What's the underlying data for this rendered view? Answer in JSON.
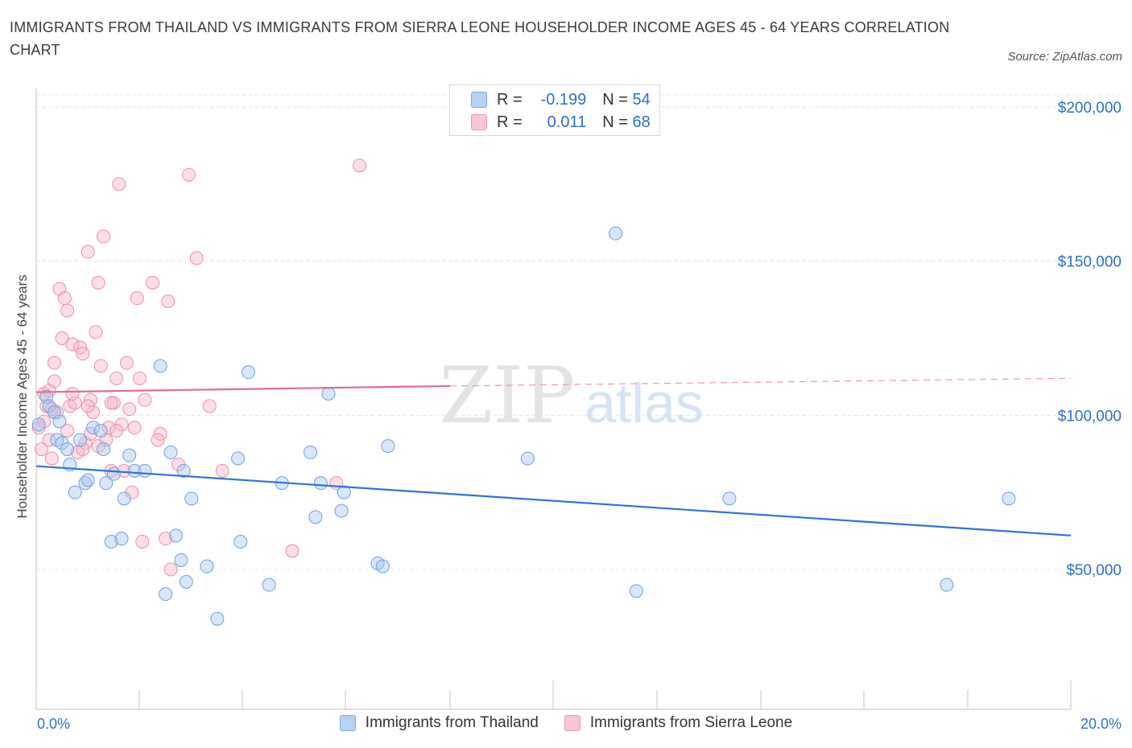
{
  "header": {
    "title": "IMMIGRANTS FROM THAILAND VS IMMIGRANTS FROM SIERRA LEONE HOUSEHOLDER INCOME AGES 45 - 64 YEARS CORRELATION CHART",
    "source": "Source: ZipAtlas.com"
  },
  "watermark": {
    "zip": "ZIP",
    "atlas": "atlas"
  },
  "legend": {
    "rows": [
      {
        "r_label": "R =",
        "r_value": "-0.199",
        "n_label": "N =",
        "n_value": "54"
      },
      {
        "r_label": "R =",
        "r_value": "0.011",
        "n_label": "N =",
        "n_value": "68"
      }
    ]
  },
  "colors": {
    "thailand_fill": "#a9c8f0",
    "thailand_stroke": "#6f9fe0",
    "thailand_line": "#2f73d6",
    "sierra_fill": "#f7b9cc",
    "sierra_stroke": "#ec8fab",
    "sierra_line": "#e46b8e",
    "axis_label": "#2f6fc9"
  },
  "chart_data": {
    "type": "scatter",
    "title": "IMMIGRANTS FROM THAILAND VS IMMIGRANTS FROM SIERRA LEONE HOUSEHOLDER INCOME AGES 45 - 64 YEARS CORRELATION CHART",
    "xlabel": "",
    "ylabel": "Householder Income Ages 45 - 64 years",
    "xlim": [
      0,
      20
    ],
    "ylim": [
      15000,
      215000
    ],
    "x_tick_labels": [
      "0.0%",
      "20.0%"
    ],
    "y_tick_values": [
      50000,
      100000,
      150000,
      200000
    ],
    "y_tick_labels": [
      "$50,000",
      "$100,000",
      "$150,000",
      "$200,000"
    ],
    "grid": true,
    "legend_position": "top-center",
    "series": [
      {
        "name": "Immigrants from Thailand",
        "R": -0.199,
        "N": 54,
        "trend": {
          "x": [
            0,
            20
          ],
          "y": [
            83500,
            61000
          ]
        },
        "points": [
          [
            0.05,
            97000
          ],
          [
            0.2,
            106000
          ],
          [
            0.25,
            103000
          ],
          [
            0.35,
            101000
          ],
          [
            0.4,
            92000
          ],
          [
            0.5,
            91000
          ],
          [
            0.6,
            89000
          ],
          [
            0.65,
            84000
          ],
          [
            0.75,
            75000
          ],
          [
            0.85,
            92000
          ],
          [
            0.95,
            78000
          ],
          [
            1.1,
            96000
          ],
          [
            1.0,
            79000
          ],
          [
            1.3,
            89000
          ],
          [
            1.35,
            78000
          ],
          [
            1.5,
            81000
          ],
          [
            1.45,
            59000
          ],
          [
            1.65,
            60000
          ],
          [
            1.7,
            73000
          ],
          [
            1.8,
            87000
          ],
          [
            1.9,
            82000
          ],
          [
            2.1,
            82000
          ],
          [
            2.4,
            116000
          ],
          [
            2.5,
            42000
          ],
          [
            2.6,
            88000
          ],
          [
            2.7,
            61000
          ],
          [
            2.8,
            53000
          ],
          [
            2.9,
            46000
          ],
          [
            2.85,
            82000
          ],
          [
            3.0,
            73000
          ],
          [
            3.3,
            51000
          ],
          [
            3.5,
            34000
          ],
          [
            3.9,
            86000
          ],
          [
            3.95,
            59000
          ],
          [
            4.1,
            114000
          ],
          [
            4.5,
            45000
          ],
          [
            4.75,
            78000
          ],
          [
            5.3,
            88000
          ],
          [
            5.4,
            67000
          ],
          [
            5.5,
            78000
          ],
          [
            5.65,
            107000
          ],
          [
            5.9,
            69000
          ],
          [
            5.95,
            75000
          ],
          [
            6.6,
            52000
          ],
          [
            6.7,
            51000
          ],
          [
            6.8,
            90000
          ],
          [
            9.5,
            86000
          ],
          [
            11.2,
            159000
          ],
          [
            11.6,
            43000
          ],
          [
            13.4,
            73000
          ],
          [
            17.6,
            45000
          ],
          [
            18.8,
            73000
          ],
          [
            0.45,
            98000
          ],
          [
            1.25,
            95000
          ]
        ]
      },
      {
        "name": "Immigrants from Sierra Leone",
        "R": 0.011,
        "N": 68,
        "trend": {
          "x": [
            0,
            8
          ],
          "y": [
            107500,
            109500
          ]
        },
        "trend_dashed": {
          "x": [
            8,
            20
          ],
          "y": [
            109500,
            112000
          ]
        },
        "points": [
          [
            0.05,
            96000
          ],
          [
            0.1,
            89000
          ],
          [
            0.15,
            107000
          ],
          [
            0.2,
            103000
          ],
          [
            0.25,
            92000
          ],
          [
            0.3,
            86000
          ],
          [
            0.35,
            111000
          ],
          [
            0.35,
            117000
          ],
          [
            0.4,
            101000
          ],
          [
            0.45,
            141000
          ],
          [
            0.5,
            125000
          ],
          [
            0.55,
            138000
          ],
          [
            0.6,
            134000
          ],
          [
            0.65,
            103000
          ],
          [
            0.7,
            123000
          ],
          [
            0.75,
            104000
          ],
          [
            0.8,
            88000
          ],
          [
            0.85,
            122000
          ],
          [
            0.9,
            120000
          ],
          [
            0.95,
            91000
          ],
          [
            1.0,
            153000
          ],
          [
            1.05,
            105000
          ],
          [
            1.1,
            101000
          ],
          [
            1.15,
            127000
          ],
          [
            1.2,
            143000
          ],
          [
            1.25,
            116000
          ],
          [
            1.3,
            158000
          ],
          [
            1.35,
            92000
          ],
          [
            1.4,
            96000
          ],
          [
            1.45,
            82000
          ],
          [
            1.5,
            104000
          ],
          [
            1.55,
            112000
          ],
          [
            1.6,
            175000
          ],
          [
            1.65,
            97000
          ],
          [
            1.7,
            82000
          ],
          [
            1.75,
            117000
          ],
          [
            1.8,
            102000
          ],
          [
            1.85,
            75000
          ],
          [
            1.9,
            96000
          ],
          [
            1.95,
            138000
          ],
          [
            2.0,
            112000
          ],
          [
            2.05,
            59000
          ],
          [
            2.1,
            105000
          ],
          [
            2.25,
            143000
          ],
          [
            2.4,
            94000
          ],
          [
            2.5,
            60000
          ],
          [
            2.55,
            137000
          ],
          [
            2.6,
            50000
          ],
          [
            2.75,
            84000
          ],
          [
            2.95,
            178000
          ],
          [
            3.1,
            151000
          ],
          [
            3.35,
            103000
          ],
          [
            3.6,
            82000
          ],
          [
            4.95,
            56000
          ],
          [
            5.8,
            78000
          ],
          [
            6.25,
            181000
          ],
          [
            0.25,
            108000
          ],
          [
            0.6,
            95000
          ],
          [
            0.9,
            89000
          ],
          [
            1.0,
            103000
          ],
          [
            1.2,
            90000
          ],
          [
            1.45,
            104000
          ],
          [
            1.55,
            95000
          ],
          [
            2.35,
            92000
          ],
          [
            0.3,
            102000
          ],
          [
            0.7,
            107000
          ],
          [
            0.15,
            98000
          ],
          [
            1.05,
            94000
          ]
        ]
      }
    ]
  }
}
